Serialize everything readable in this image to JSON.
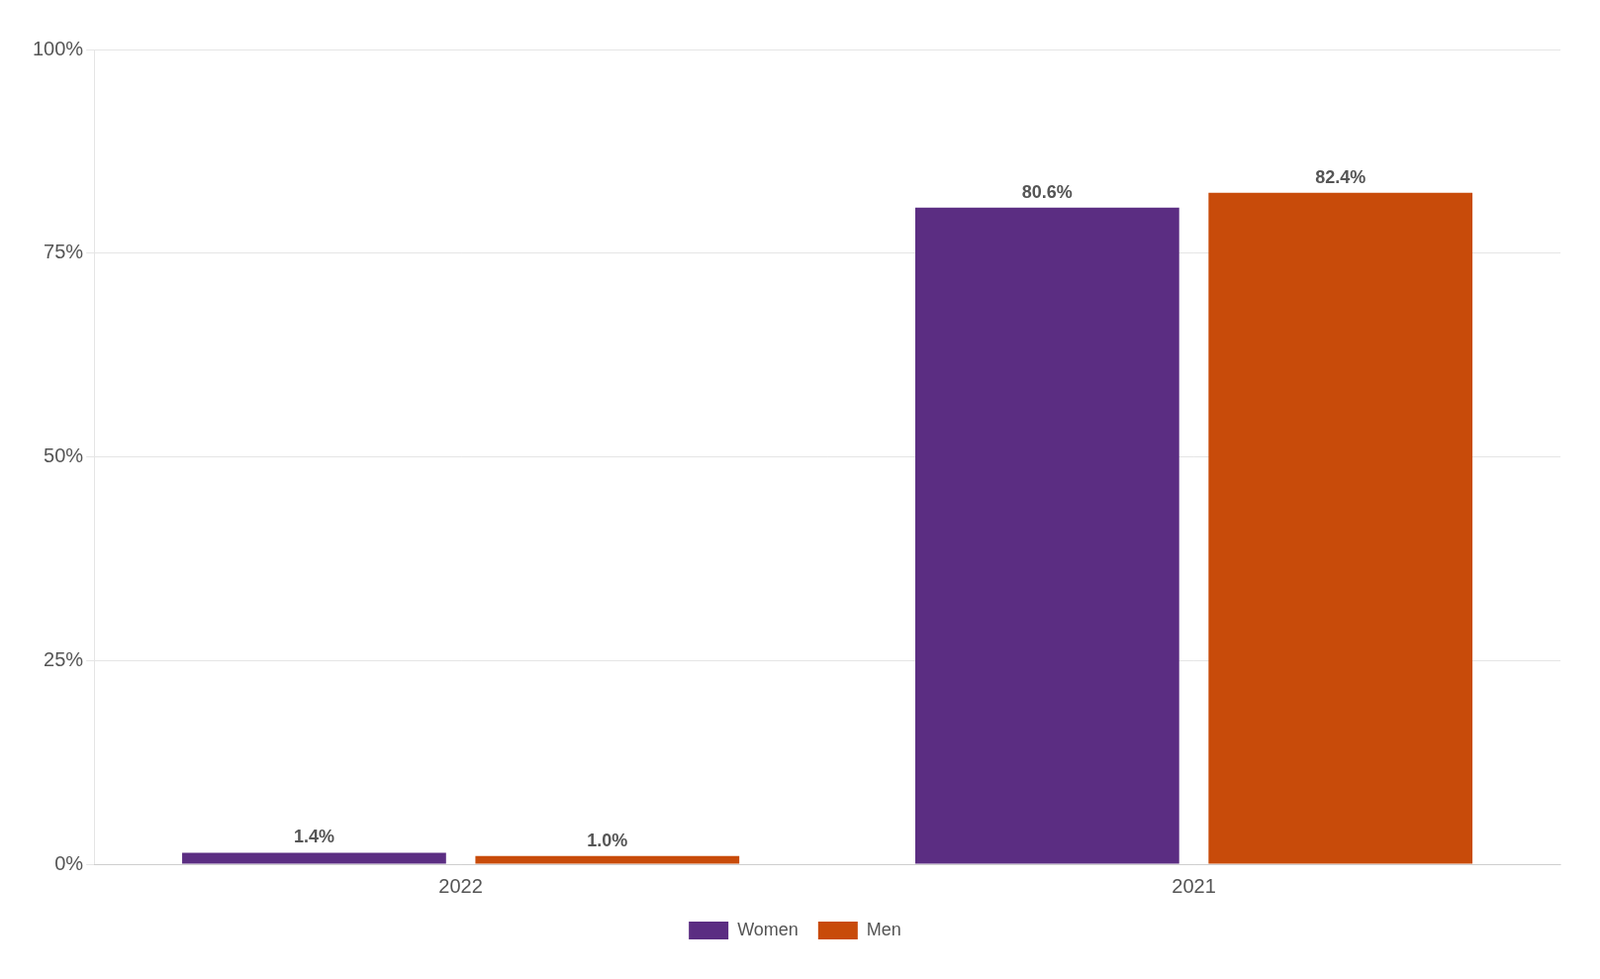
{
  "chart_data": {
    "type": "bar",
    "categories": [
      "2022",
      "2021"
    ],
    "series": [
      {
        "name": "Women",
        "color": "#5B2D82",
        "values": [
          1.4,
          80.6
        ],
        "value_labels": [
          "1.4%",
          "80.6%"
        ]
      },
      {
        "name": "Men",
        "color": "#C84B0A",
        "values": [
          1.0,
          82.4
        ],
        "value_labels": [
          "1.0%",
          "82.4%"
        ]
      }
    ],
    "ylim": [
      0,
      100
    ],
    "yticks": [
      {
        "value": 0,
        "label": "0%"
      },
      {
        "value": 25,
        "label": "25%"
      },
      {
        "value": 50,
        "label": "50%"
      },
      {
        "value": 75,
        "label": "75%"
      },
      {
        "value": 100,
        "label": "100%"
      }
    ],
    "grid": true,
    "data_labels": true,
    "legend": "bottom"
  }
}
